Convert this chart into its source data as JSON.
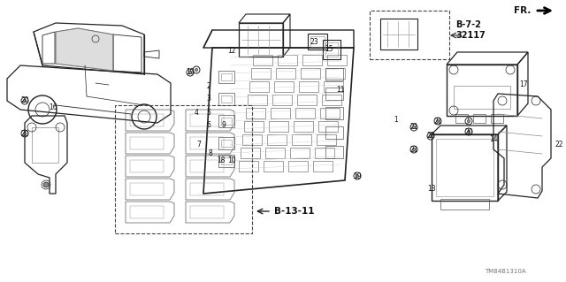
{
  "bg_color": "#ffffff",
  "fig_width": 6.4,
  "fig_height": 3.19,
  "watermark": "TM84B1310A",
  "ref_label_B72": "B-7-2\n32117",
  "ref_label_B1311": "B-13-11",
  "fr_label": "FR.",
  "label_color": "#111111",
  "line_color": "#222222",
  "dash_color": "#444444",
  "gray": "#888888",
  "darkgray": "#555555"
}
